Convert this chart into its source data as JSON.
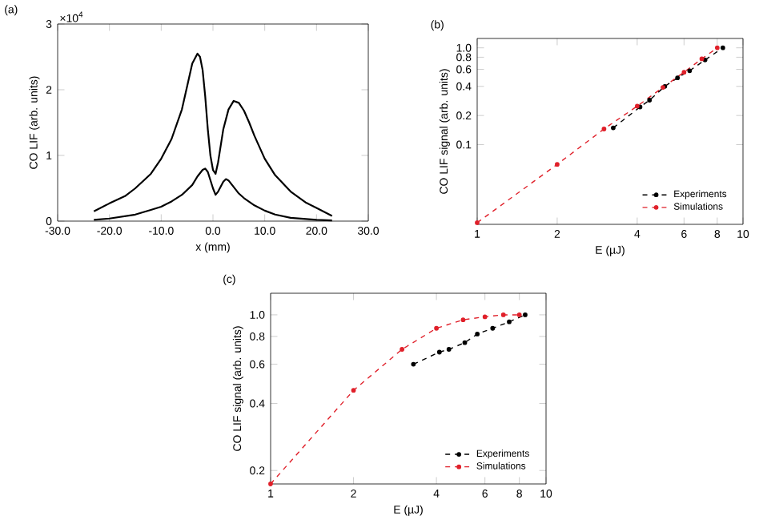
{
  "chart_data": [
    {
      "type": "line",
      "title": "(a)",
      "xlabel": "x (mm)",
      "ylabel": "CO LIF (arb. units)",
      "annotations": [
        "×10$^{4}$"
      ],
      "xlim": [
        -30,
        30
      ],
      "xticks": [
        {
          "value": -30,
          "label": "-30.0"
        },
        {
          "value": -20,
          "label": "-20.0"
        },
        {
          "value": -10,
          "label": "-10.0"
        },
        {
          "value": 0,
          "label": "0.0"
        },
        {
          "value": 10,
          "label": "10.0"
        },
        {
          "value": 20,
          "label": "20.0"
        },
        {
          "value": 30,
          "label": "30.0"
        }
      ],
      "ylim": [
        0,
        3
      ],
      "yticks": [
        0,
        1,
        2,
        3
      ],
      "series": [
        {
          "color": "#000000",
          "x": [
            -23,
            -20,
            -17,
            -15,
            -12,
            -10,
            -8,
            -6,
            -5,
            -4,
            -3,
            -2.5,
            -2,
            -1.5,
            -1,
            -0.5,
            0,
            0.5,
            1,
            1.5,
            2,
            3,
            4,
            5,
            6,
            7,
            8,
            10,
            12,
            15,
            18,
            20,
            23
          ],
          "values": [
            0.15,
            0.27,
            0.38,
            0.5,
            0.72,
            0.95,
            1.25,
            1.7,
            2.05,
            2.4,
            2.55,
            2.5,
            2.3,
            1.9,
            1.4,
            1.0,
            0.78,
            0.72,
            0.9,
            1.15,
            1.4,
            1.7,
            1.83,
            1.8,
            1.68,
            1.5,
            1.3,
            0.95,
            0.7,
            0.45,
            0.28,
            0.2,
            0.08
          ]
        },
        {
          "color": "#000000",
          "x": [
            -23,
            -20,
            -15,
            -12,
            -10,
            -8,
            -6,
            -4,
            -3,
            -2,
            -1.5,
            -1,
            0,
            0.5,
            1,
            2,
            2.5,
            3,
            4,
            5,
            6,
            8,
            10,
            12,
            15,
            20,
            23
          ],
          "values": [
            0.02,
            0.04,
            0.1,
            0.17,
            0.22,
            0.3,
            0.4,
            0.55,
            0.68,
            0.78,
            0.8,
            0.75,
            0.5,
            0.4,
            0.45,
            0.6,
            0.64,
            0.62,
            0.52,
            0.42,
            0.35,
            0.24,
            0.16,
            0.1,
            0.05,
            0.02,
            0.01
          ]
        }
      ]
    },
    {
      "type": "line",
      "title": "(b)",
      "xlabel": "E (µJ)",
      "ylabel": "CO LIF signal (arb. units)",
      "log": "xy",
      "legend": "bottom right",
      "marker": "circle",
      "line_style": "dashed",
      "xlim": [
        1,
        10
      ],
      "xticks": [
        1,
        2,
        4,
        6,
        8,
        10
      ],
      "ylim": [
        0.015,
        1.25
      ],
      "yticks": [
        0.1,
        0.2,
        0.4,
        0.6,
        0.8,
        {
          "value": 1,
          "label": "1.0"
        }
      ],
      "series": [
        {
          "name": "Experiments",
          "color": "#000000",
          "x": [
            3.25,
            4.1,
            4.45,
            5.08,
            5.67,
            6.3,
            7.2,
            8.4
          ],
          "values": [
            0.149,
            0.245,
            0.288,
            0.4,
            0.49,
            0.58,
            0.75,
            1.0
          ]
        },
        {
          "name": "Simulations",
          "color": "#e0202a",
          "x": [
            1,
            2,
            3,
            4,
            5,
            6,
            7,
            8
          ],
          "values": [
            0.0156,
            0.0625,
            0.145,
            0.25,
            0.39,
            0.56,
            0.77,
            1.0
          ]
        }
      ]
    },
    {
      "type": "line",
      "title": "(c)",
      "xlabel": "E (µJ)",
      "ylabel": "CO LIF signal (arb. units)",
      "log": "xy",
      "legend": "bottom right",
      "marker": "circle",
      "line_style": "dashed",
      "xlim": [
        1,
        10
      ],
      "xticks": [
        1,
        2,
        4,
        6,
        8,
        10
      ],
      "ylim": [
        0.174,
        1.25
      ],
      "yticks": [
        0.2,
        0.4,
        0.6,
        0.8,
        {
          "value": 1,
          "label": "1.0"
        }
      ],
      "series": [
        {
          "name": "Experiments",
          "color": "#000000",
          "x": [
            3.3,
            4.1,
            4.44,
            5.07,
            5.63,
            6.4,
            7.35,
            8.4
          ],
          "values": [
            0.6,
            0.68,
            0.7,
            0.75,
            0.82,
            0.87,
            0.93,
            1.0
          ]
        },
        {
          "name": "Simulations",
          "color": "#e0202a",
          "x": [
            1,
            2,
            3,
            4,
            5,
            6,
            7,
            8
          ],
          "values": [
            0.174,
            0.458,
            0.7,
            0.87,
            0.95,
            0.98,
            1.0,
            1.0
          ]
        }
      ]
    }
  ]
}
